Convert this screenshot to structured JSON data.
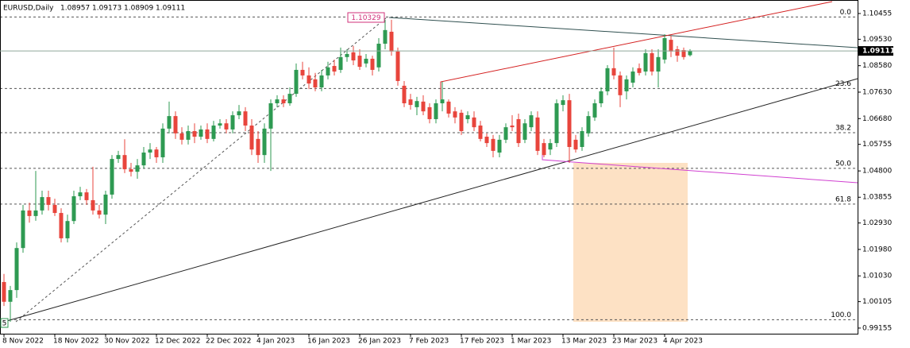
{
  "chart_data": {
    "type": "candlestick",
    "symbol": "EURUSD,Daily",
    "up_color": "#2e9a52",
    "down_color": "#e8453c",
    "price_line_color": "#8fa89a",
    "ylim": [
      0.98953,
      1.1094
    ],
    "yticks": [
      1.10455,
      {
        "value": 1.0953,
        "label": "1.09530"
      },
      {
        "value": 1.0858,
        "label": "1.08580"
      },
      {
        "value": 1.0763,
        "label": "1.07630"
      },
      {
        "value": 1.0668,
        "label": "1.06680"
      },
      1.05755,
      {
        "value": 1.048,
        "label": "1.04800"
      },
      1.03855,
      {
        "value": 1.0293,
        "label": "1.02930"
      },
      {
        "value": 1.0198,
        "label": "1.01980"
      },
      {
        "value": 1.0103,
        "label": "1.01030"
      },
      1.00105,
      0.99155
    ],
    "categories": [
      "8 Nov 2022",
      null,
      null,
      null,
      null,
      null,
      null,
      null,
      "18 Nov 2022",
      null,
      null,
      null,
      null,
      null,
      null,
      null,
      "30 Nov 2022",
      null,
      null,
      null,
      null,
      null,
      null,
      null,
      "12 Dec 2022",
      null,
      null,
      null,
      null,
      null,
      null,
      null,
      "22 Dec 2022",
      null,
      null,
      null,
      null,
      null,
      null,
      null,
      "4 Jan 2023",
      null,
      null,
      null,
      null,
      null,
      null,
      null,
      "16 Jan 2023",
      null,
      null,
      null,
      null,
      null,
      null,
      null,
      "26 Jan 2023",
      null,
      null,
      null,
      null,
      null,
      null,
      null,
      "7 Feb 2023",
      null,
      null,
      null,
      null,
      null,
      null,
      null,
      "17 Feb 2023",
      null,
      null,
      null,
      null,
      null,
      null,
      null,
      "1 Mar 2023",
      null,
      null,
      null,
      null,
      null,
      null,
      null,
      "13 Mar 2023",
      null,
      null,
      null,
      null,
      null,
      null,
      null,
      "23 Mar 2023",
      null,
      null,
      null,
      null,
      null,
      null,
      null,
      "4 Apr 2023",
      null,
      null,
      null,
      null
    ],
    "candles": [
      [
        1.0081,
        1.011,
        0.9995,
        1.001
      ],
      [
        1.001,
        1.0067,
        0.9938,
        1.0052
      ],
      [
        1.0052,
        1.0223,
        1.0024,
        1.0203
      ],
      [
        1.0203,
        1.0358,
        1.0186,
        1.0338
      ],
      [
        1.0338,
        1.0366,
        1.0294,
        1.0318
      ],
      [
        1.0318,
        1.048,
        1.0301,
        1.0338
      ],
      [
        1.0338,
        1.0409,
        1.0323,
        1.0386
      ],
      [
        1.0386,
        1.0409,
        1.0338,
        1.0358
      ],
      [
        1.0358,
        1.038,
        1.0318,
        1.0329
      ],
      [
        1.0329,
        1.0346,
        1.0223,
        1.0238
      ],
      [
        1.0238,
        1.0323,
        1.0223,
        1.03
      ],
      [
        1.03,
        1.0409,
        1.0289,
        1.0389
      ],
      [
        1.0389,
        1.0423,
        1.0375,
        1.0403
      ],
      [
        1.0403,
        1.0415,
        1.0358,
        1.0375
      ],
      [
        1.0375,
        1.0495,
        1.0323,
        1.0338
      ],
      [
        1.0338,
        1.0358,
        1.0309,
        1.0323
      ],
      [
        1.0323,
        1.0409,
        1.0289,
        1.0395
      ],
      [
        1.0395,
        1.0537,
        1.038,
        1.0523
      ],
      [
        1.0523,
        1.0552,
        1.0509,
        1.0537
      ],
      [
        1.0537,
        1.0594,
        1.0472,
        1.0486
      ],
      [
        1.0486,
        1.0509,
        1.046,
        1.0477
      ],
      [
        1.0477,
        1.0523,
        1.0452,
        1.05
      ],
      [
        1.05,
        1.0566,
        1.0489,
        1.0546
      ],
      [
        1.0546,
        1.058,
        1.0523,
        1.0557
      ],
      [
        1.0557,
        1.0566,
        1.0509,
        1.0529
      ],
      [
        1.0529,
        1.0651,
        1.0509,
        1.0632
      ],
      [
        1.0632,
        1.0729,
        1.0615,
        1.0677
      ],
      [
        1.0677,
        1.0694,
        1.0595,
        1.0615
      ],
      [
        1.0615,
        1.0637,
        1.0575,
        1.0592
      ],
      [
        1.0592,
        1.0643,
        1.0575,
        1.0623
      ],
      [
        1.0623,
        1.0651,
        1.058,
        1.0603
      ],
      [
        1.0603,
        1.0643,
        1.0592,
        1.0629
      ],
      [
        1.0629,
        1.0651,
        1.058,
        1.0595
      ],
      [
        1.0595,
        1.066,
        1.0586,
        1.0643
      ],
      [
        1.0643,
        1.0666,
        1.0632,
        1.0651
      ],
      [
        1.0651,
        1.0666,
        1.0615,
        1.0629
      ],
      [
        1.0629,
        1.0694,
        1.0615,
        1.068
      ],
      [
        1.068,
        1.0717,
        1.0666,
        1.0694
      ],
      [
        1.0694,
        1.0709,
        1.0623,
        1.0643
      ],
      [
        1.0643,
        1.0666,
        1.0537,
        1.0557
      ],
      [
        1.0595,
        1.0623,
        1.0509,
        1.0537
      ],
      [
        1.0537,
        1.0651,
        1.0509,
        1.0632
      ],
      [
        1.0632,
        1.0737,
        1.048,
        1.0723
      ],
      [
        1.0723,
        1.0752,
        1.0709,
        1.0737
      ],
      [
        1.0737,
        1.0752,
        1.0709,
        1.0723
      ],
      [
        1.0723,
        1.078,
        1.0714,
        1.0757
      ],
      [
        1.0757,
        1.0866,
        1.0746,
        1.0843
      ],
      [
        1.0843,
        1.0872,
        1.0809,
        1.0823
      ],
      [
        1.0823,
        1.0852,
        1.0774,
        1.0794
      ],
      [
        1.0809,
        1.0832,
        1.0766,
        1.078
      ],
      [
        1.078,
        1.0843,
        1.0766,
        1.0823
      ],
      [
        1.0823,
        1.0872,
        1.0809,
        1.0852
      ],
      [
        1.0857,
        1.088,
        1.0823,
        1.0837
      ],
      [
        1.0843,
        1.0923,
        1.0832,
        1.0889
      ],
      [
        1.0889,
        1.0917,
        1.0872,
        1.09
      ],
      [
        1.0906,
        1.0929,
        1.086,
        1.0877
      ],
      [
        1.0894,
        1.0917,
        1.0843,
        1.0854
      ],
      [
        1.0866,
        1.09,
        1.0852,
        1.0883
      ],
      [
        1.0883,
        1.0894,
        1.0823,
        1.0843
      ],
      [
        1.0852,
        1.0957,
        1.0837,
        1.0937
      ],
      [
        1.0937,
        1.1023,
        1.0917,
        1.0986
      ],
      [
        1.098,
        1.1023,
        1.0894,
        1.0909
      ],
      [
        1.0909,
        1.0923,
        1.0786,
        1.0803
      ],
      [
        1.0786,
        1.0803,
        1.0709,
        1.0723
      ],
      [
        1.0737,
        1.0757,
        1.07,
        1.0717
      ],
      [
        1.0709,
        1.0746,
        1.068,
        1.0731
      ],
      [
        1.0729,
        1.0752,
        1.068,
        1.0694
      ],
      [
        1.0709,
        1.0723,
        1.0651,
        1.0666
      ],
      [
        1.0666,
        1.0737,
        1.0651,
        1.0723
      ],
      [
        1.0723,
        1.08,
        1.0694,
        1.0737
      ],
      [
        1.0729,
        1.0737,
        1.0672,
        1.0686
      ],
      [
        1.0694,
        1.0709,
        1.0651,
        1.0672
      ],
      [
        1.0689,
        1.07,
        1.0609,
        1.0623
      ],
      [
        1.0666,
        1.0694,
        1.0651,
        1.068
      ],
      [
        1.0672,
        1.0694,
        1.0623,
        1.0637
      ],
      [
        1.0643,
        1.066,
        1.0586,
        1.0595
      ],
      [
        1.0603,
        1.0615,
        1.0566,
        1.058
      ],
      [
        1.0595,
        1.0609,
        1.0529,
        1.0552
      ],
      [
        1.0546,
        1.0609,
        1.0529,
        1.0592
      ],
      [
        1.0592,
        1.0651,
        1.058,
        1.0637
      ],
      [
        1.0643,
        1.068,
        1.0623,
        1.0637
      ],
      [
        1.0666,
        1.0686,
        1.0566,
        1.058
      ],
      [
        1.0592,
        1.0666,
        1.058,
        1.0651
      ],
      [
        1.0637,
        1.0694,
        1.0623,
        1.068
      ],
      [
        1.0672,
        1.0694,
        1.0537,
        1.0552
      ],
      [
        1.058,
        1.0595,
        1.0529,
        1.0537
      ],
      [
        1.0557,
        1.0595,
        1.0537,
        1.058
      ],
      [
        1.058,
        1.0737,
        1.0566,
        1.0723
      ],
      [
        1.0717,
        1.0752,
        1.0694,
        1.0734
      ],
      [
        1.0734,
        1.0757,
        1.0509,
        1.0566
      ],
      [
        1.0592,
        1.0609,
        1.0546,
        1.0557
      ],
      [
        1.0566,
        1.0637,
        1.0552,
        1.0623
      ],
      [
        1.0615,
        1.0694,
        1.0603,
        1.0677
      ],
      [
        1.0672,
        1.0737,
        1.066,
        1.0723
      ],
      [
        1.0723,
        1.078,
        1.0709,
        1.0766
      ],
      [
        1.0766,
        1.086,
        1.0752,
        1.0849
      ],
      [
        1.0849,
        1.0923,
        1.0809,
        1.0823
      ],
      [
        1.0823,
        1.0837,
        1.0709,
        1.0752
      ],
      [
        1.0766,
        1.0823,
        1.0737,
        1.0809
      ],
      [
        1.0797,
        1.0852,
        1.078,
        1.0837
      ],
      [
        1.0849,
        1.0866,
        1.0823,
        1.0832
      ],
      [
        1.0837,
        1.0917,
        1.0823,
        1.0903
      ],
      [
        1.0903,
        1.0917,
        1.0823,
        1.0837
      ],
      [
        1.0837,
        1.0917,
        1.078,
        1.0889
      ],
      [
        1.088,
        1.0971,
        1.0866,
        1.0957
      ],
      [
        1.0951,
        1.0966,
        1.0889,
        1.0909
      ],
      [
        1.0917,
        1.0929,
        1.0872,
        1.0894
      ],
      [
        1.0914,
        1.0923,
        1.088,
        1.0889
      ],
      [
        1.08957,
        1.09173,
        1.08909,
        1.09111
      ]
    ],
    "fib": {
      "high": 1.10329,
      "low": 0.99455,
      "low_tag": "5",
      "levels": [
        {
          "value": 0,
          "label": "0.0"
        },
        23.6,
        38.2,
        {
          "value": 50,
          "label": "50.0"
        },
        61.8,
        {
          "value": 100,
          "label": "100.0"
        }
      ]
    }
  }
}
